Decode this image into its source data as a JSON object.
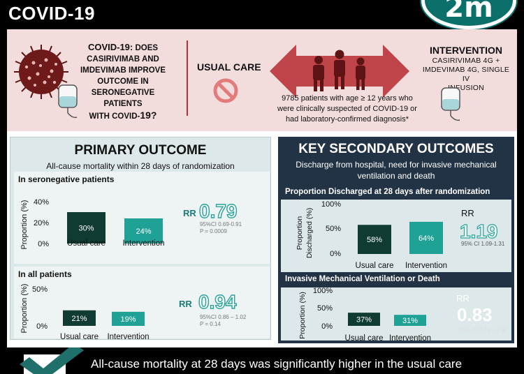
{
  "header": {
    "title": "COVID-19",
    "logo_text": "2m"
  },
  "question": {
    "lead": "COVID-19:",
    "line1": " DOES",
    "line2": "CASIRIVIMAB AND",
    "line3": "IMDEVIMAB IMPROVE",
    "line4": "OUTCOME IN",
    "line5": "SERONEGATIVE PATIENTS",
    "line6_pre": "WITH COVID-",
    "line6_num": "19?"
  },
  "usual_care_label": "USUAL CARE",
  "population": {
    "line1": "9785 patients with age ≥ 12 years who",
    "line2": "were clinically suspected of COVID-19 or",
    "line3": "had laboratory-confirmed diagnosis*"
  },
  "intervention": {
    "title": "INTERVENTION",
    "line1": "CASIRIVIMAB 4G +",
    "line2": "IMDEVIMAB 4G, SINGLE IV",
    "line3": "INFUSION"
  },
  "primary": {
    "title": "PRIMARY OUTCOME",
    "subtitle": "All-cause mortality within 28 days of randomization",
    "seronegative": {
      "title": "In seronegative patients",
      "ylabel": "Proportion (%)",
      "ticks": [
        "40%",
        "20%",
        "0%"
      ],
      "rr_label": "RR",
      "rr_value": "0.79",
      "ci": "95%CI 0.69-0.91",
      "p": "P = 0.0009"
    },
    "all": {
      "title": "In all patients",
      "ylabel": "Proportion (%)",
      "ticks": [
        "50%",
        "0%"
      ],
      "rr_label": "RR",
      "rr_value": "0.94",
      "ci": "95%CI 0.86 – 1.02",
      "p": "P = 0.14"
    }
  },
  "secondary": {
    "title": "KEY SECONDARY OUTCOMES",
    "subtitle_line1": "Discharge from hospital, need for invasive mechanical",
    "subtitle_line2": "ventilation and death",
    "discharge": {
      "title": "Proportion Discharged at 28 days after randomization",
      "ylabel_line1": "Proportion",
      "ylabel_line2": "Discharged (%)",
      "ticks": [
        "100%",
        "50%",
        "0%"
      ],
      "rr_label": "RR",
      "rr_value": "1.19",
      "ci": "95% CI 1.09-1.31"
    },
    "imv": {
      "title": "Invasive Mechanical Ventilation or Death",
      "ylabel": "Proportion (%)",
      "ticks": [
        "100%",
        "50%",
        "0%"
      ],
      "rr_label": "RR",
      "rr_value": "0.83",
      "ci": "95% CI 0.75 – 0.92"
    }
  },
  "bottom_text": "All-cause mortality at 28 days was significantly higher in the usual care",
  "colors": {
    "usual_care": "#0f3b33",
    "intervention": "#1fa196",
    "accent_red": "#b5303a",
    "pink_band": "#f2dcdc",
    "navy": "#233346"
  },
  "chart_data": [
    {
      "type": "bar",
      "title": "In seronegative patients",
      "ylabel": "Proportion (%)",
      "categories": [
        "Usual care",
        "Intervention"
      ],
      "values": [
        30,
        24
      ],
      "labels": [
        "30%",
        "24%"
      ],
      "ylim": [
        0,
        40
      ]
    },
    {
      "type": "bar",
      "title": "In all patients",
      "ylabel": "Proportion (%)",
      "categories": [
        "Usual care",
        "Intervention"
      ],
      "values": [
        21,
        19
      ],
      "labels": [
        "21%",
        "19%"
      ],
      "ylim": [
        0,
        50
      ]
    },
    {
      "type": "bar",
      "title": "Proportion Discharged at 28 days after randomization",
      "ylabel": "Proportion Discharged (%)",
      "categories": [
        "Usual care",
        "Intervention"
      ],
      "values": [
        58,
        64
      ],
      "labels": [
        "58%",
        "64%"
      ],
      "ylim": [
        0,
        100
      ]
    },
    {
      "type": "bar",
      "title": "Invasive Mechanical Ventilation or Death",
      "ylabel": "Proportion (%)",
      "categories": [
        "Usual care",
        "Intervention"
      ],
      "values": [
        37,
        31
      ],
      "labels": [
        "37%",
        "31%"
      ],
      "ylim": [
        0,
        100
      ]
    }
  ]
}
